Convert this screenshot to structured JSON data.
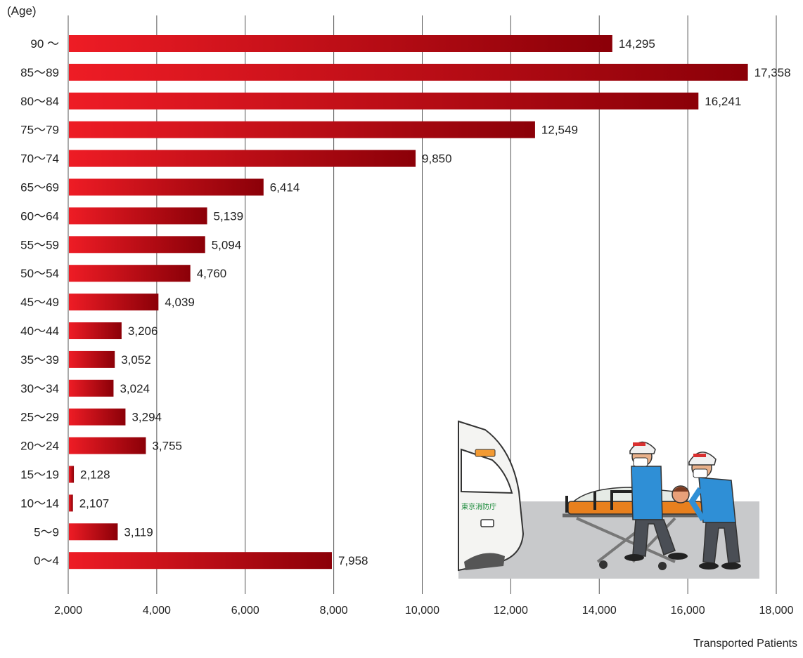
{
  "chart_data": {
    "type": "bar",
    "orientation": "horizontal",
    "y_unit_label": "(Age)",
    "xlabel": "Transported Patients",
    "xlim": [
      2000,
      18000
    ],
    "xticks": [
      "2,000",
      "4,000",
      "6,000",
      "8,000",
      "10,000",
      "12,000",
      "14,000",
      "16,000",
      "18,000"
    ],
    "xtick_values": [
      2000,
      4000,
      6000,
      8000,
      10000,
      12000,
      14000,
      16000,
      18000
    ],
    "grid": "vertical",
    "categories": [
      "90 ～",
      "85～89",
      "80～84",
      "75～79",
      "70～74",
      "65～69",
      "60～64",
      "55～59",
      "50～54",
      "45～49",
      "40～44",
      "35～39",
      "30～34",
      "25～29",
      "20～24",
      "15～19",
      "10～14",
      "5～9",
      "0～4"
    ],
    "values": [
      14295,
      17358,
      16241,
      12549,
      9850,
      6414,
      5139,
      5094,
      4760,
      4039,
      3206,
      3052,
      3024,
      3294,
      3755,
      2128,
      2107,
      3119,
      7958
    ],
    "value_labels": [
      "14,295",
      "17,358",
      "16,241",
      "12,549",
      "9,850",
      "6,414",
      "5,139",
      "5,094",
      "4,760",
      "4,039",
      "3,206",
      "3,052",
      "3,024",
      "3,294",
      "3,755",
      "2,128",
      "2,107",
      "3,119",
      "7,958"
    ],
    "bar_colors": {
      "start": "#ee1c25",
      "end": "#8b0008"
    },
    "grid_color": "#555555"
  },
  "illustration": {
    "icon": "ambulance-stretcher-icon",
    "vehicle_text": "東京消防庁",
    "colors": {
      "ground": "#c8c9cb",
      "vehicle": "#f4f4f2",
      "stretcher": "#e8801e",
      "uniform": "#2f8fd6",
      "helmet": "#f0f0f0"
    }
  }
}
